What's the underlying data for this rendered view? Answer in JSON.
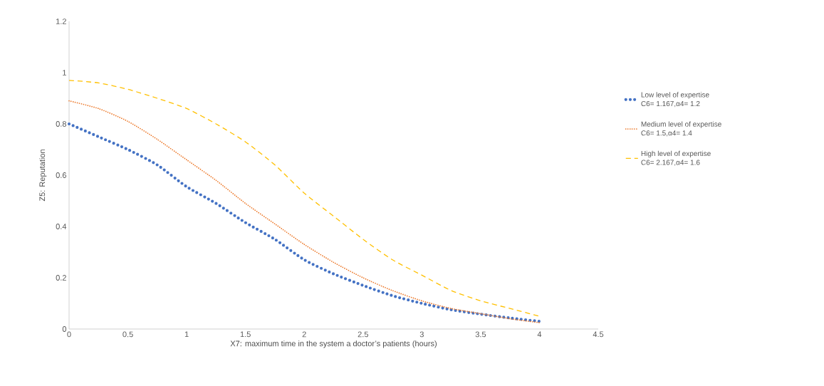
{
  "chart_data": {
    "type": "line",
    "xlabel": "X7: maximum time in the system a doctor’s patients (hours)",
    "ylabel": "Z5: Reputation",
    "x": [
      0,
      0.25,
      0.5,
      0.75,
      1,
      1.25,
      1.5,
      1.75,
      2,
      2.25,
      2.5,
      2.75,
      3,
      3.25,
      3.5,
      3.75,
      4
    ],
    "series": [
      {
        "name": "Low level of expertise\nC6= 1.167,α4= 1.2",
        "color": "#4472c4",
        "line_style": "dotted",
        "values": [
          0.8,
          0.75,
          0.7,
          0.64,
          0.555,
          0.49,
          0.415,
          0.35,
          0.27,
          0.215,
          0.17,
          0.13,
          0.1,
          0.075,
          0.058,
          0.043,
          0.03
        ]
      },
      {
        "name": "Medium  level of expertise\nC6= 1.5,α4= 1.4",
        "color": "#ed7d31",
        "line_style": "dotted",
        "values": [
          0.89,
          0.86,
          0.81,
          0.74,
          0.66,
          0.58,
          0.49,
          0.41,
          0.33,
          0.26,
          0.2,
          0.15,
          0.11,
          0.08,
          0.06,
          0.04,
          0.025
        ]
      },
      {
        "name": "High  level of expertise\nC6= 2.167,α4= 1.6",
        "color": "#ffc000",
        "line_style": "dashed",
        "values": [
          0.97,
          0.96,
          0.935,
          0.9,
          0.86,
          0.8,
          0.73,
          0.64,
          0.53,
          0.44,
          0.35,
          0.27,
          0.21,
          0.15,
          0.11,
          0.08,
          0.05
        ]
      }
    ],
    "xlim": [
      0,
      4.5
    ],
    "xticks": [
      0,
      0.5,
      1,
      1.5,
      2,
      2.5,
      3,
      3.5,
      4,
      4.5
    ],
    "ylim": [
      0,
      1.2
    ],
    "yticks": [
      0,
      0.2,
      0.4,
      0.6,
      0.8,
      1,
      1.2
    ],
    "grid": false,
    "legend": "right",
    "marker": "none"
  }
}
